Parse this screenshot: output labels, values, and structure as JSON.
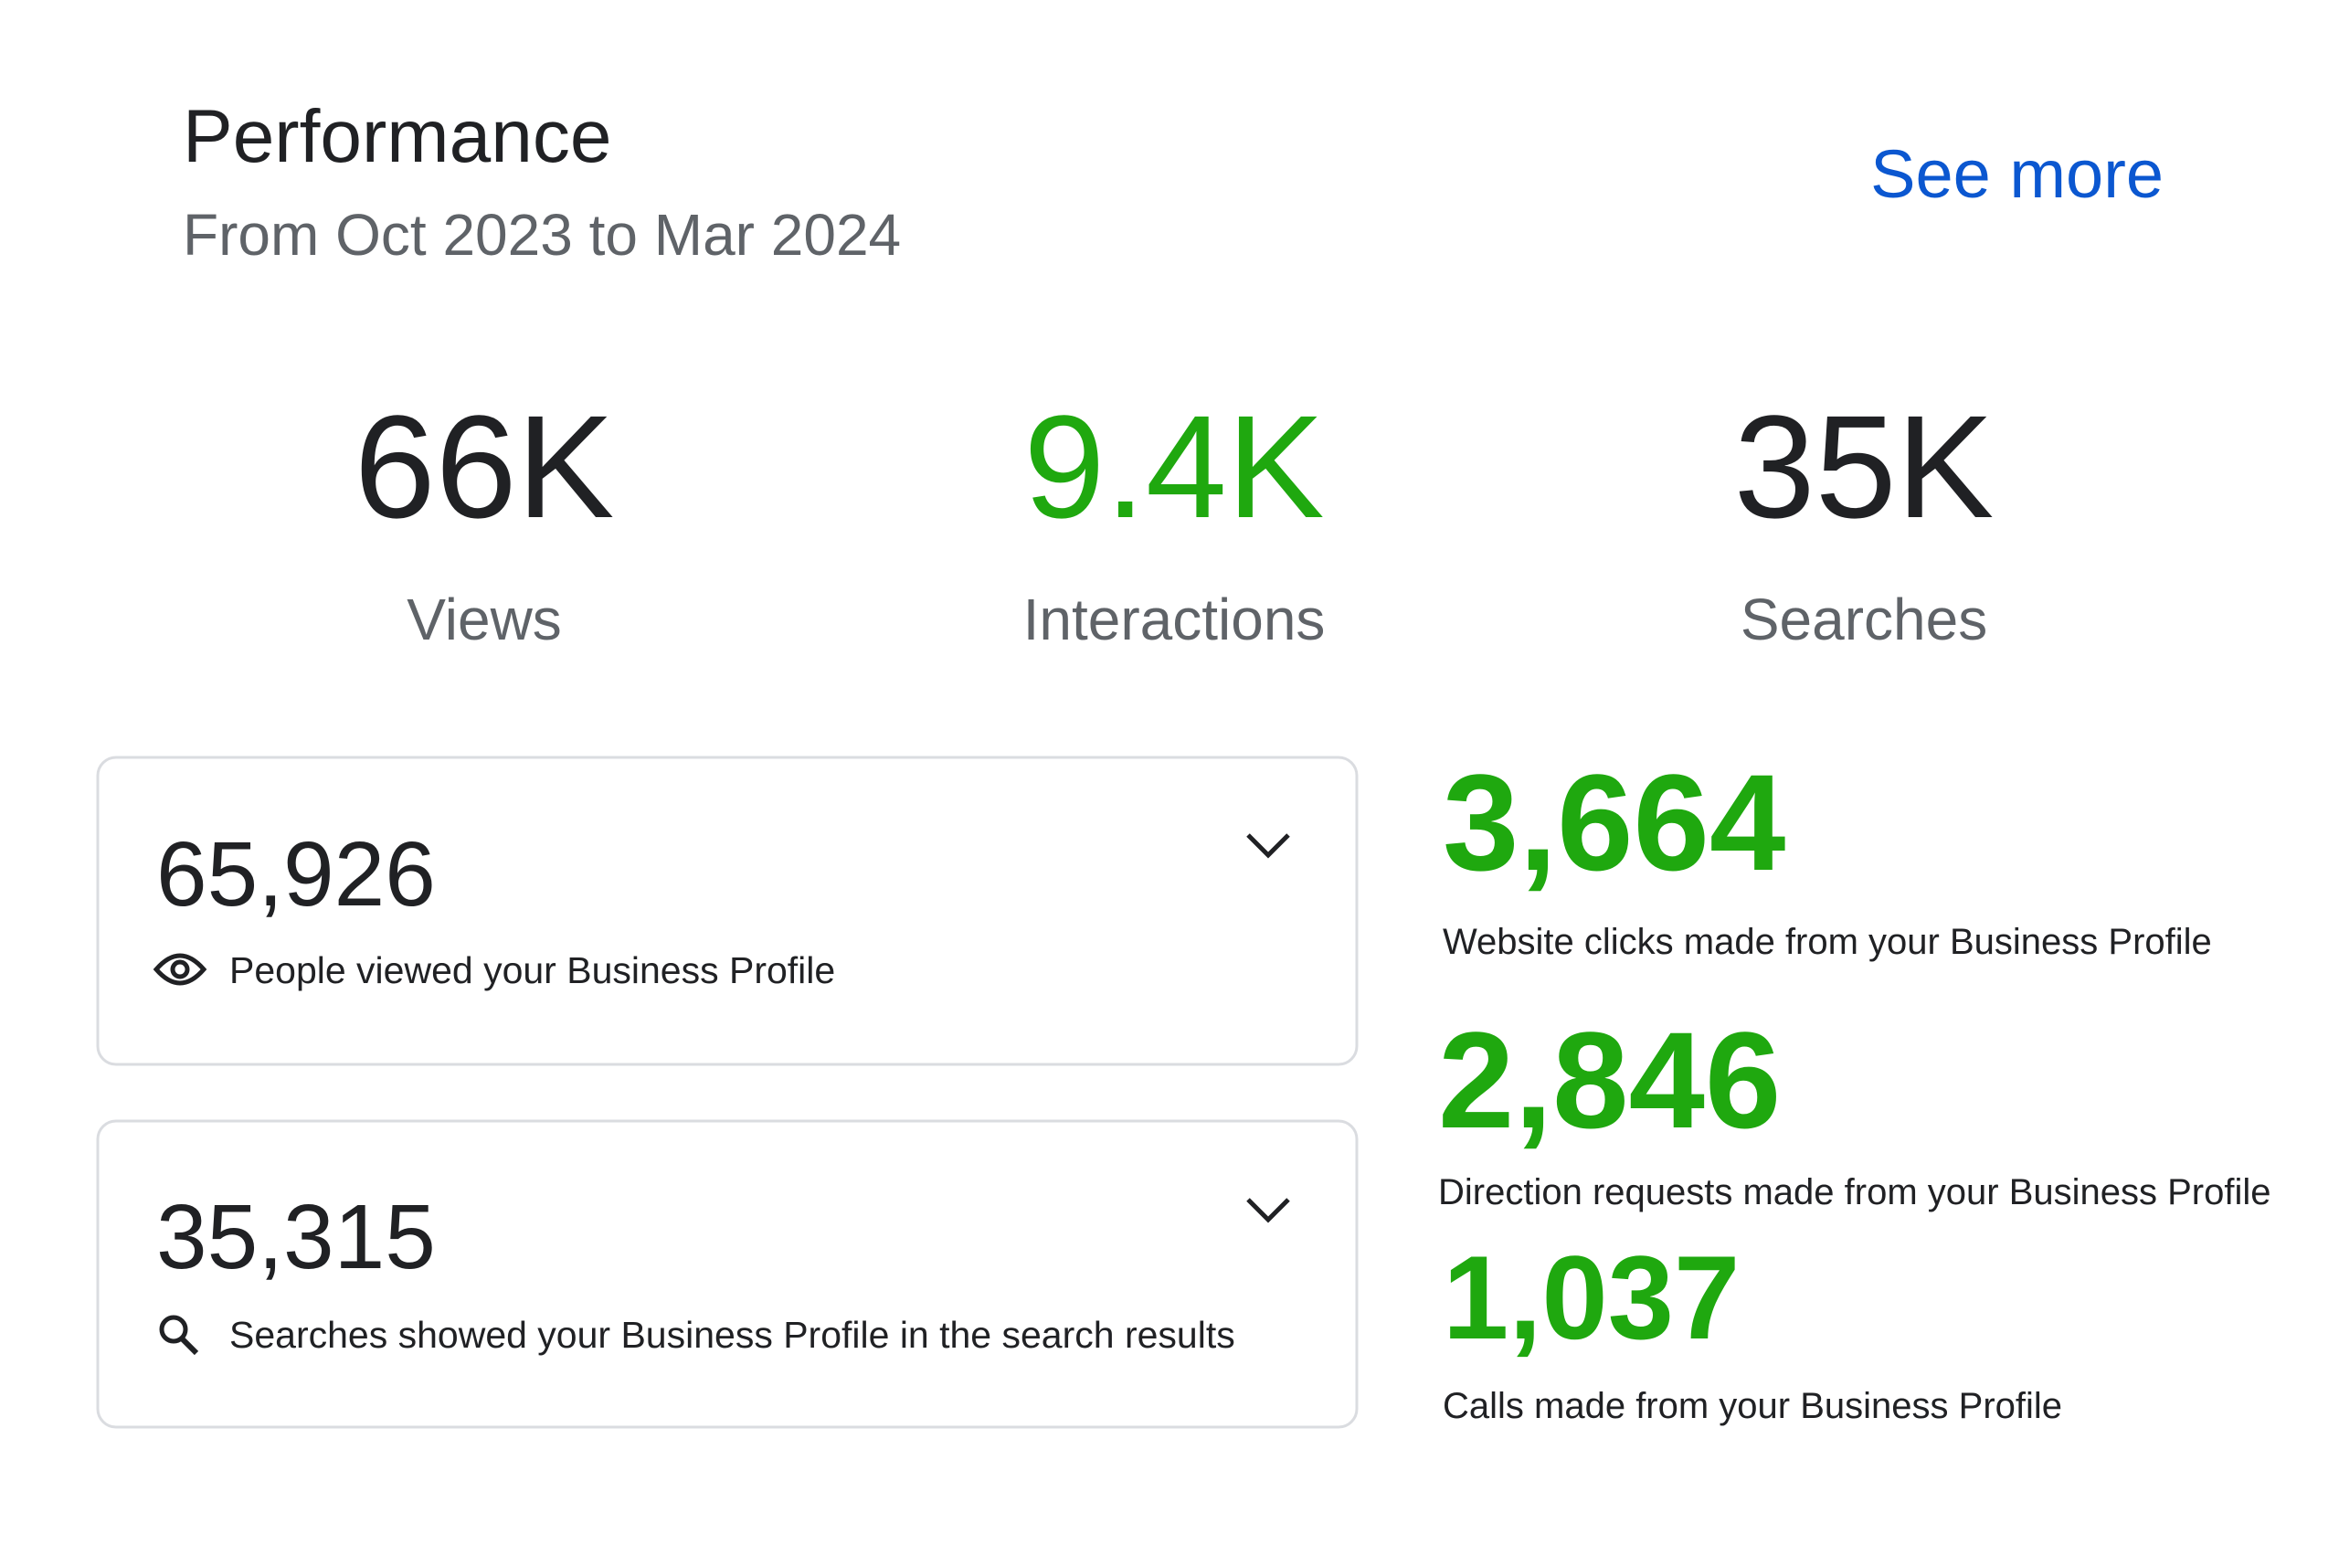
{
  "header": {
    "title": "Performance",
    "subtitle": "From Oct 2023 to Mar 2024",
    "link": "See more"
  },
  "summary": [
    {
      "value": "66K",
      "label": "Views"
    },
    {
      "value": "9.4K",
      "label": "Interactions"
    },
    {
      "value": "35K",
      "label": "Searches"
    }
  ],
  "cards": [
    {
      "value": "65,926",
      "label": "People viewed your Business Profile"
    },
    {
      "value": "35,315",
      "label": "Searches showed your Business Profile in the search results"
    }
  ],
  "interactions": [
    {
      "value": "3,664",
      "label": "Website clicks made from your Business Profile"
    },
    {
      "value": "2,846",
      "label": "Direction requests made from your Business Profile"
    },
    {
      "value": "1,037",
      "label": "Calls made from your Business Profile"
    }
  ]
}
